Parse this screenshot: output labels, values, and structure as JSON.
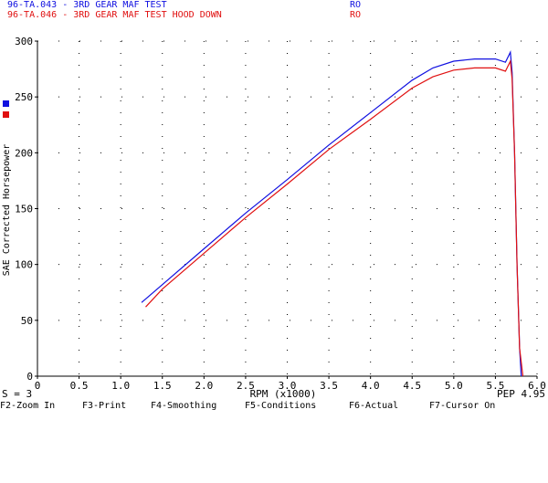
{
  "header": {
    "run1_label": "96-TA.043 - 3RD GEAR MAF TEST",
    "run1_code": "RO",
    "run2_label": "96-TA.046 - 3RD GEAR MAF TEST HOOD DOWN",
    "run2_code": "RO"
  },
  "colors": {
    "run1": "#1010e0",
    "run2": "#e01010",
    "axis": "#000000",
    "grid": "#000000"
  },
  "status": {
    "smoothing": "S = 3",
    "pep": "PEP 4.95"
  },
  "function_keys": [
    "F2-Zoom In",
    "F3-Print",
    "F4-Smoothing",
    "F5-Conditions",
    "F6-Actual",
    "F7-Cursor On"
  ],
  "chart_data": {
    "type": "line",
    "title": "",
    "xlabel": "RPM (x1000)",
    "ylabel": "SAE Corrected Horsepower",
    "xlim": [
      0,
      6.0
    ],
    "ylim": [
      0,
      300
    ],
    "x_ticks": [
      "0",
      "0.5",
      "1.0",
      "1.5",
      "2.0",
      "2.5",
      "3.0",
      "3.5",
      "4.0",
      "4.5",
      "5.0",
      "5.5",
      "6.0"
    ],
    "y_ticks": [
      "0",
      "50",
      "100",
      "150",
      "200",
      "250",
      "300"
    ],
    "grid": "dotted",
    "series": [
      {
        "x": [
          1.25,
          1.5,
          2.0,
          2.5,
          3.0,
          3.5,
          4.0,
          4.5,
          4.75,
          5.0,
          5.25,
          5.5,
          5.62,
          5.68,
          5.7,
          5.73,
          5.76,
          5.79,
          5.81
        ],
        "y": [
          66,
          82,
          114,
          146,
          176,
          207,
          236,
          265,
          276,
          282,
          284,
          284,
          281,
          290,
          272,
          200,
          100,
          25,
          0
        ]
      },
      {
        "x": [
          1.3,
          1.5,
          2.0,
          2.5,
          3.0,
          3.5,
          4.0,
          4.5,
          4.75,
          5.0,
          5.25,
          5.5,
          5.62,
          5.68,
          5.7,
          5.73,
          5.76,
          5.79,
          5.83
        ],
        "y": [
          62,
          78,
          110,
          142,
          172,
          203,
          230,
          258,
          268,
          274,
          276,
          276,
          273,
          282,
          266,
          200,
          100,
          25,
          0
        ]
      }
    ]
  }
}
